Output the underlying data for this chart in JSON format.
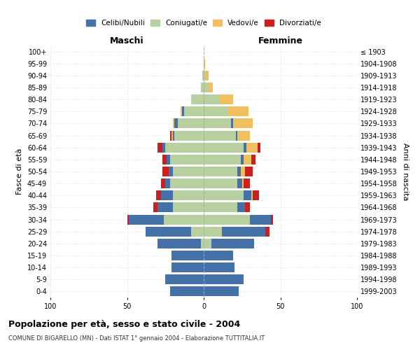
{
  "age_groups": [
    "100+",
    "95-99",
    "90-94",
    "85-89",
    "80-84",
    "75-79",
    "70-74",
    "65-69",
    "60-64",
    "55-59",
    "50-54",
    "45-49",
    "40-44",
    "35-39",
    "30-34",
    "25-29",
    "20-24",
    "15-19",
    "10-14",
    "5-9",
    "0-4"
  ],
  "birth_years": [
    "≤ 1903",
    "1904-1908",
    "1909-1913",
    "1914-1918",
    "1919-1923",
    "1924-1928",
    "1929-1933",
    "1934-1938",
    "1939-1943",
    "1944-1948",
    "1949-1953",
    "1954-1958",
    "1959-1963",
    "1964-1968",
    "1969-1973",
    "1974-1978",
    "1979-1983",
    "1984-1988",
    "1989-1993",
    "1994-1998",
    "1999-2003"
  ],
  "colors": {
    "celibi": "#4472a8",
    "coniugati": "#b8cfa0",
    "vedovi": "#f0c060",
    "divorziati": "#cc2020"
  },
  "maschi": {
    "celibi": [
      0,
      0,
      0,
      0,
      0,
      1,
      2,
      1,
      2,
      2,
      3,
      3,
      8,
      10,
      23,
      30,
      28,
      21,
      21,
      25,
      22
    ],
    "coniugati": [
      0,
      0,
      1,
      2,
      8,
      13,
      17,
      19,
      25,
      22,
      20,
      22,
      20,
      20,
      26,
      8,
      2,
      0,
      0,
      0,
      0
    ],
    "vedovi": [
      0,
      0,
      0,
      0,
      0,
      1,
      1,
      1,
      0,
      0,
      0,
      0,
      0,
      0,
      0,
      0,
      0,
      0,
      0,
      0,
      0
    ],
    "divorziati": [
      0,
      0,
      0,
      0,
      0,
      0,
      0,
      1,
      3,
      3,
      4,
      3,
      3,
      3,
      1,
      0,
      0,
      0,
      0,
      0,
      0
    ]
  },
  "femmine": {
    "nubili": [
      0,
      0,
      0,
      0,
      0,
      0,
      1,
      1,
      2,
      2,
      2,
      3,
      5,
      5,
      14,
      28,
      28,
      19,
      20,
      26,
      23
    ],
    "coniugate": [
      0,
      0,
      1,
      3,
      10,
      16,
      18,
      21,
      26,
      24,
      22,
      22,
      26,
      22,
      30,
      12,
      5,
      0,
      0,
      0,
      0
    ],
    "vedove": [
      0,
      1,
      2,
      3,
      9,
      13,
      13,
      8,
      7,
      5,
      3,
      1,
      1,
      0,
      0,
      0,
      0,
      0,
      0,
      0,
      0
    ],
    "divorziate": [
      0,
      0,
      0,
      0,
      0,
      0,
      0,
      0,
      2,
      3,
      5,
      4,
      4,
      3,
      1,
      3,
      0,
      0,
      0,
      0,
      0
    ]
  },
  "title": "Popolazione per età, sesso e stato civile - 2004",
  "subtitle": "COMUNE DI BIGARELLO (MN) - Dati ISTAT 1° gennaio 2004 - Elaborazione TUTTITALIA.IT",
  "xlabel_left": "Maschi",
  "xlabel_right": "Femmine",
  "ylabel_left": "Fasce di età",
  "ylabel_right": "Anni di nascita",
  "xlim": 100,
  "legend_labels": [
    "Celibi/Nubili",
    "Coniugati/e",
    "Vedovi/e",
    "Divorziati/e"
  ],
  "background_color": "#ffffff",
  "grid_color": "#cccccc"
}
